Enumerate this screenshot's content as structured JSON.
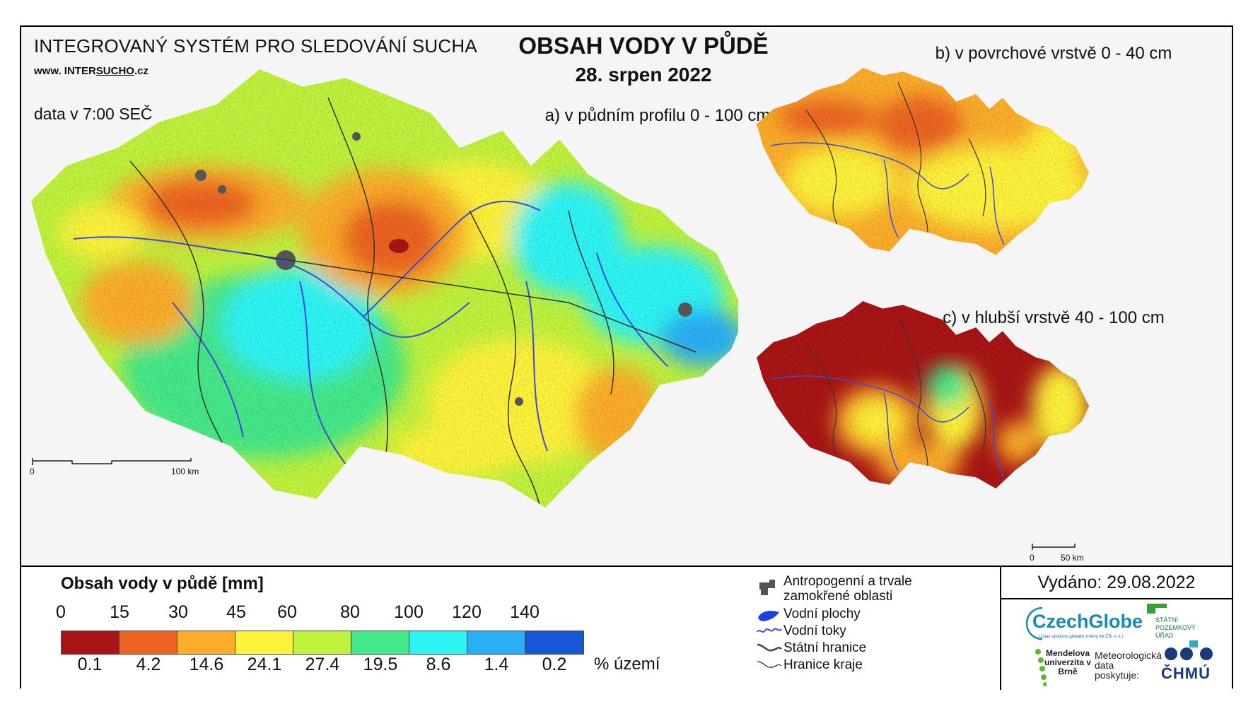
{
  "header": {
    "system_title": "INTEGROVANÝ SYSTÉM PRO SLEDOVÁNÍ SUCHA",
    "www_prefix": "www. INTER",
    "www_underlined": "SUCHO",
    "www_suffix": ".cz",
    "data_time": "data v 7:00 SEČ",
    "title": "OBSAH VODY V PŮDĚ",
    "date": "28. srpen 2022"
  },
  "maps": {
    "a_caption": "a) v půdním profilu 0 - 100 cm",
    "b_caption": "b) v povrchové vrstvě 0 - 40 cm",
    "c_caption": "c) v hlubší vrstvě 40 - 100 cm",
    "scale_main_start": "0",
    "scale_main_end": "100 km",
    "scale_small_start": "0",
    "scale_small_end": "50 km"
  },
  "legend": {
    "title": "Obsah vody v půdě  [mm]",
    "ticks": [
      "0",
      "15",
      "30",
      "45",
      "60",
      "80",
      "100",
      "120",
      "140"
    ],
    "colors": [
      "#a81515",
      "#ec6323",
      "#fbad2b",
      "#fdf23a",
      "#bff23d",
      "#44e889",
      "#2ef4f4",
      "#2aaff5",
      "#1657d6"
    ],
    "percent": [
      "0.1",
      "4.2",
      "14.6",
      "24.1",
      "27.4",
      "19.5",
      "8.6",
      "1.4",
      "0.2"
    ],
    "percent_label": "% území"
  },
  "symbols": {
    "urban": "Antropogenní a trvale zamokřené oblasti",
    "water_bodies": "Vodní plochy",
    "rivers": "Vodní toky",
    "state_border": "Státní hranice",
    "region_border": "Hranice kraje"
  },
  "footer": {
    "issued": "Vydáno: 29.08.2022",
    "czechglobe": "CzechGlobe",
    "czechglobe_sub": "Ústav výzkumu globální změny AV ČR, v. v. i.",
    "spu": "STÁTNÍ POZEMKOVÝ ÚŘAD",
    "mendel": "Mendelova univerzita v Brně",
    "met": "Meteorologická data poskytuje:",
    "chmu": "ČHMÚ"
  }
}
